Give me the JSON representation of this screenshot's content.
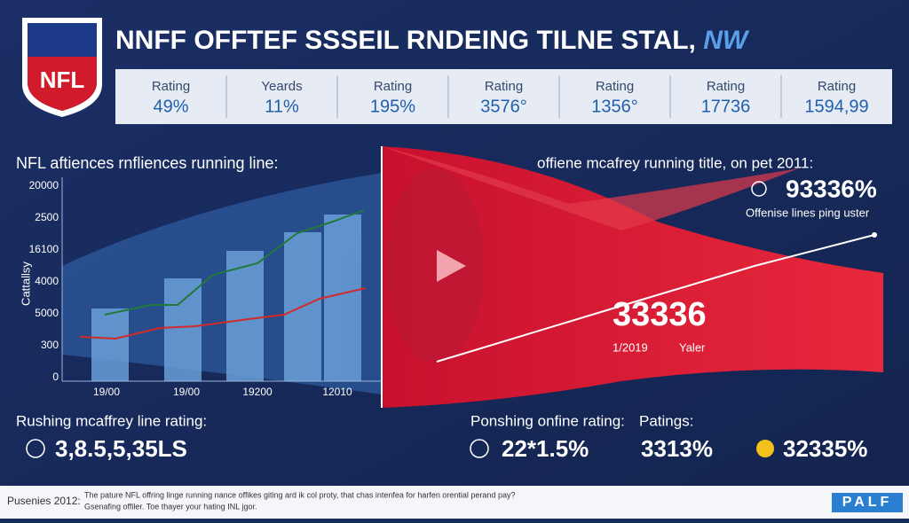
{
  "header": {
    "logo": "NFL",
    "title": "NNFF OFFTEF SSSEIL RNDEING TILNE STAL,",
    "title_suffix": "NW"
  },
  "stats": [
    {
      "label": "Rating",
      "value": "49%"
    },
    {
      "label": "Yeards",
      "value": "11%"
    },
    {
      "label": "Rating",
      "value": "195%"
    },
    {
      "label": "Rating",
      "value": "3576°"
    },
    {
      "label": "Rating",
      "value": "1356°"
    },
    {
      "label": "Rating",
      "value": "17736"
    },
    {
      "label": "Rating",
      "value": "1594,99"
    }
  ],
  "left_panel": {
    "heading": "NFL aftiences rnfliences running line:",
    "y_axis_label": "Cattallsy",
    "y_labels": [
      "20000",
      "2500",
      "16100",
      "4000",
      "5000",
      "300",
      "0"
    ],
    "x_labels": [
      "19/00",
      "19/00",
      "19200",
      "12010"
    ]
  },
  "right_panel": {
    "heading": "offiene mcafrey running title, on pet 2011:",
    "stat": "93336%",
    "stat_caption": "Offenise lines ping uster",
    "big_number": "33336",
    "big_date": "1/2019",
    "big_caption": "Yaler"
  },
  "bottom": [
    {
      "label": "Rushing mcaffrey line rating:",
      "value": "3,8.5,5,35LS"
    },
    {
      "label": "Ponshing onfine rating:",
      "value": "22*1.5%"
    },
    {
      "label": "Patings:",
      "value": "3313%"
    },
    {
      "label": null,
      "value": "32335%"
    }
  ],
  "footer": {
    "left": "Pusenies 2012:",
    "line1": "The pature NFL offring linge running nance offikes giting ard ik col proty, that chas intenfea for harfen orential perand pay?",
    "line2": "Gsenafing offiler. Toe thayer your hating INL jgor.",
    "brand": "PALF"
  }
}
